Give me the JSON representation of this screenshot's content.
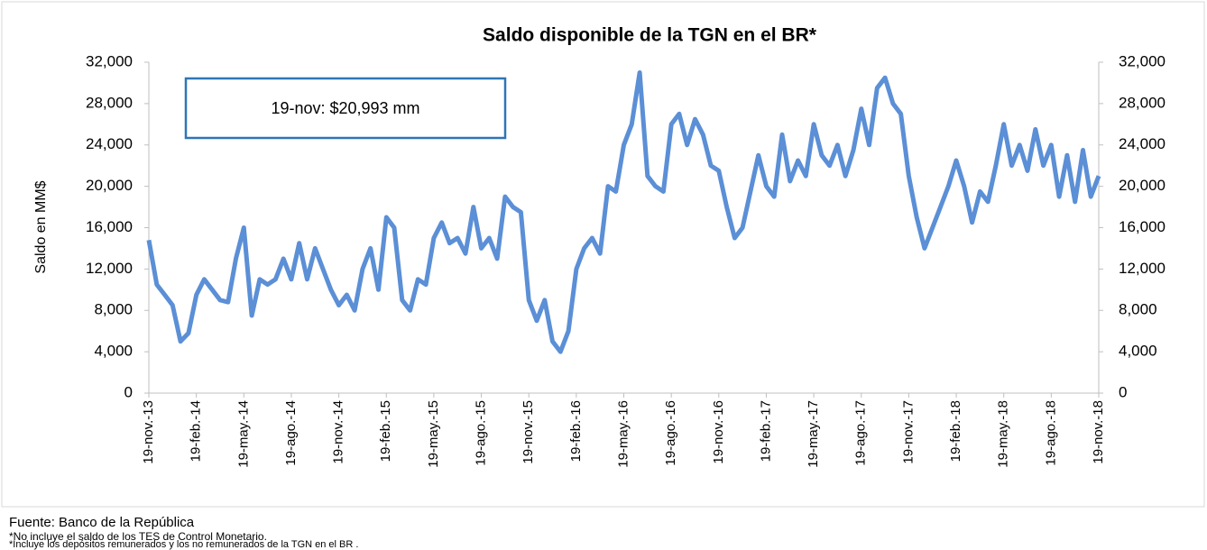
{
  "chart_data": {
    "type": "line",
    "title": "Saldo disponible de la TGN en el BR*",
    "ylabel": "Saldo en MM$",
    "annotation": "19-nov: $20,993 mm",
    "source": "Fuente: Banco de la República",
    "notes": [
      "*No incluye el saldo de los TES de Control Monetario.",
      "*Incluye los depósitos remunerados y los no remunerados de la TGN en el BR ."
    ],
    "categories": [
      "19-nov.-13",
      null,
      null,
      null,
      null,
      null,
      "19-feb.-14",
      null,
      null,
      null,
      null,
      null,
      "19-may.-14",
      null,
      null,
      null,
      null,
      null,
      "19-ago.-14",
      null,
      null,
      null,
      null,
      null,
      "19-nov.-14",
      null,
      null,
      null,
      null,
      null,
      "19-feb.-15",
      null,
      null,
      null,
      null,
      null,
      "19-may.-15",
      null,
      null,
      null,
      null,
      null,
      "19-ago.-15",
      null,
      null,
      null,
      null,
      null,
      "19-nov.-15",
      null,
      null,
      null,
      null,
      null,
      "19-feb.-16",
      null,
      null,
      null,
      null,
      null,
      "19-may.-16",
      null,
      null,
      null,
      null,
      null,
      "19-ago.-16",
      null,
      null,
      null,
      null,
      null,
      "19-nov.-16",
      null,
      null,
      null,
      null,
      null,
      "19-feb.-17",
      null,
      null,
      null,
      null,
      null,
      "19-may.-17",
      null,
      null,
      null,
      null,
      null,
      "19-ago.-17",
      null,
      null,
      null,
      null,
      null,
      "19-nov.-17",
      null,
      null,
      null,
      null,
      null,
      "19-feb.-18",
      null,
      null,
      null,
      null,
      null,
      "19-may.-18",
      null,
      null,
      null,
      null,
      null,
      "19-ago.-18",
      null,
      null,
      null,
      null,
      null,
      "19-nov.-18"
    ],
    "series": [
      {
        "name": "Saldo",
        "color": "#5b8fd6",
        "values": [
          14800,
          10500,
          9500,
          8500,
          5000,
          5800,
          9500,
          11000,
          10000,
          9000,
          8800,
          13000,
          16000,
          7500,
          11000,
          10500,
          11000,
          13000,
          11000,
          14500,
          11000,
          14000,
          12000,
          10000,
          8500,
          9500,
          8000,
          12000,
          14000,
          10000,
          17000,
          16000,
          9000,
          8000,
          11000,
          10500,
          15000,
          16500,
          14500,
          15000,
          13500,
          18000,
          14000,
          15000,
          13000,
          19000,
          18000,
          17500,
          9000,
          7000,
          9000,
          5000,
          4000,
          6000,
          12000,
          14000,
          15000,
          13500,
          20000,
          19500,
          24000,
          26000,
          31000,
          21000,
          20000,
          19500,
          26000,
          27000,
          24000,
          26500,
          25000,
          22000,
          21500,
          18000,
          15000,
          16000,
          19500,
          23000,
          20000,
          19000,
          25000,
          20500,
          22500,
          21000,
          26000,
          23000,
          22000,
          24000,
          21000,
          23500,
          27500,
          24000,
          29500,
          30500,
          28000,
          27000,
          21000,
          17000,
          14000,
          16000,
          18000,
          20000,
          22500,
          20000,
          16500,
          19500,
          18500,
          22000,
          26000,
          22000,
          24000,
          21500,
          25500,
          22000,
          24000,
          19000,
          23000,
          18500,
          23500,
          19000,
          20993
        ]
      }
    ],
    "ylim": [
      0,
      32000
    ],
    "yticks": [
      0,
      {
        "value": 4000,
        "label": "4,000"
      },
      {
        "value": 8000,
        "label": "8,000"
      },
      {
        "value": 12000,
        "label": "12,000"
      },
      {
        "value": 16000,
        "label": "16,000"
      },
      {
        "value": 20000,
        "label": "20,000"
      },
      {
        "value": 24000,
        "label": "24,000"
      },
      {
        "value": 28000,
        "label": "28,000"
      },
      {
        "value": 32000,
        "label": "32,000"
      }
    ],
    "y2lim": [
      0,
      32000
    ],
    "y2ticks": [
      0,
      {
        "value": 4000,
        "label": "4,000"
      },
      {
        "value": 8000,
        "label": "8,000"
      },
      {
        "value": 12000,
        "label": "12,000"
      },
      {
        "value": 16000,
        "label": "16,000"
      },
      {
        "value": 20000,
        "label": "20,000"
      },
      {
        "value": 24000,
        "label": "24,000"
      },
      {
        "value": 28000,
        "label": "28,000"
      },
      {
        "value": 32000,
        "label": "32,000"
      }
    ]
  }
}
